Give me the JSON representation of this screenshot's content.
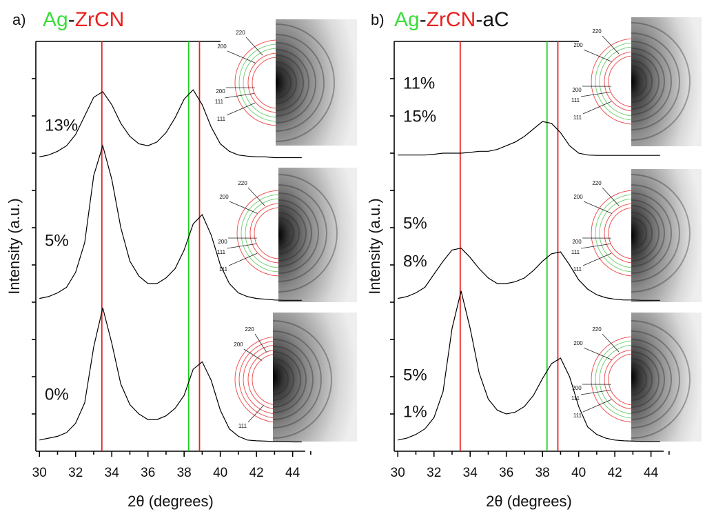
{
  "chart_data": [
    {
      "type": "line",
      "panel_label": "a)",
      "title": [
        "Ag",
        "-",
        "ZrCN"
      ],
      "title_colors": [
        "#3ddc3d",
        "#111111",
        "#e8201f"
      ],
      "x_label": "2θ (degrees)",
      "y_label": "Intensity (a.u.)",
      "xlim": [
        29.8,
        44.7
      ],
      "ylim": [
        0,
        11
      ],
      "xticks": [
        30,
        32,
        34,
        36,
        38,
        40,
        42,
        44
      ],
      "x": [
        30,
        30.5,
        31,
        31.5,
        32,
        32.5,
        33,
        33.5,
        34,
        34.5,
        35,
        35.5,
        36,
        36.5,
        37,
        37.5,
        38,
        38.5,
        39,
        39.5,
        40,
        40.5,
        41,
        41.5,
        42,
        42.5,
        43,
        43.5,
        44,
        44.5
      ],
      "ref_lines": [
        {
          "x": 33.45,
          "color": "#e8201f"
        },
        {
          "x": 38.25,
          "color": "#22cc22"
        },
        {
          "x": 38.85,
          "color": "#e8201f"
        }
      ],
      "series": [
        {
          "labels": [
            "0%"
          ],
          "label_colors": [
            "#3ddc3d"
          ],
          "color": "#000000",
          "values": [
            0.3,
            0.35,
            0.4,
            0.5,
            0.75,
            1.3,
            2.8,
            3.85,
            2.9,
            1.8,
            1.25,
            1.0,
            0.85,
            0.85,
            0.95,
            1.15,
            1.5,
            2.2,
            2.4,
            1.9,
            1.1,
            0.6,
            0.4,
            0.3,
            0.28,
            0.27,
            0.26,
            0.26,
            0.25,
            0.25
          ]
        },
        {
          "labels": [
            "5%"
          ],
          "label_colors": [
            "#3ddc3d"
          ],
          "color": "#000000",
          "values": [
            4.1,
            4.15,
            4.25,
            4.4,
            4.8,
            5.6,
            7.4,
            8.2,
            7.3,
            6.0,
            5.1,
            4.7,
            4.5,
            4.5,
            4.65,
            4.9,
            5.4,
            6.1,
            6.35,
            5.8,
            5.0,
            4.5,
            4.25,
            4.15,
            4.1,
            4.08,
            4.06,
            4.05,
            4.05,
            4.05
          ]
        },
        {
          "labels": [
            "13%"
          ],
          "label_colors": [
            "#3ddc3d"
          ],
          "color": "#000000",
          "values": [
            7.9,
            7.95,
            8.05,
            8.2,
            8.5,
            9.0,
            9.5,
            9.65,
            9.3,
            8.8,
            8.45,
            8.25,
            8.2,
            8.3,
            8.55,
            8.95,
            9.45,
            9.7,
            9.3,
            8.7,
            8.25,
            8.05,
            7.95,
            7.92,
            7.9,
            7.9,
            7.88,
            7.88,
            7.88,
            7.88
          ]
        }
      ],
      "insets": [
        {
          "labels": [
            "111",
            "200",
            "220"
          ],
          "label_colors": [
            "#111111",
            "#111111",
            "#111111"
          ]
        },
        {
          "labels": [
            "220",
            "200",
            "200",
            "111",
            "111"
          ],
          "label_colors": [
            "#e8201f",
            "#e8201f",
            "#22cc22",
            "#22cc22",
            "#e8201f"
          ]
        },
        {
          "labels": [
            "220",
            "200",
            "200",
            "111",
            "111"
          ],
          "label_colors": [
            "#e8201f",
            "#e8201f",
            "#22cc22",
            "#22cc22",
            "#e8201f"
          ]
        }
      ]
    },
    {
      "type": "line",
      "panel_label": "b)",
      "title": [
        "Ag",
        "-",
        "ZrCN",
        "-aC"
      ],
      "title_colors": [
        "#3ddc3d",
        "#111111",
        "#e8201f",
        "#111111"
      ],
      "x_label": "2θ (degrees)",
      "y_label": "Intensity (a.u.)",
      "xlim": [
        29.8,
        44.7
      ],
      "ylim": [
        0,
        11
      ],
      "xticks": [
        30,
        32,
        34,
        36,
        38,
        40,
        42,
        44
      ],
      "x": [
        30,
        30.5,
        31,
        31.5,
        32,
        32.5,
        33,
        33.5,
        34,
        34.5,
        35,
        35.5,
        36,
        36.5,
        37,
        37.5,
        38,
        38.5,
        39,
        39.5,
        40,
        40.5,
        41,
        41.5,
        42,
        42.5,
        43,
        43.5,
        44,
        44.5
      ],
      "ref_lines": [
        {
          "x": 33.45,
          "color": "#e8201f"
        },
        {
          "x": 38.25,
          "color": "#22cc22"
        },
        {
          "x": 38.85,
          "color": "#e8201f"
        }
      ],
      "series": [
        {
          "labels": [
            "5%",
            "1%"
          ],
          "label_colors": [
            "#3ddc3d",
            "#111111"
          ],
          "color": "#000000",
          "values": [
            0.3,
            0.35,
            0.45,
            0.6,
            0.9,
            1.6,
            3.3,
            4.3,
            3.3,
            2.1,
            1.4,
            1.1,
            1.0,
            1.05,
            1.2,
            1.5,
            1.95,
            2.35,
            2.5,
            2.0,
            1.2,
            0.65,
            0.45,
            0.35,
            0.3,
            0.28,
            0.27,
            0.26,
            0.26,
            0.26
          ]
        },
        {
          "labels": [
            "5%",
            "8%"
          ],
          "label_colors": [
            "#3ddc3d",
            "#111111"
          ],
          "color": "#000000",
          "values": [
            4.1,
            4.15,
            4.25,
            4.4,
            4.75,
            5.1,
            5.4,
            5.45,
            5.2,
            4.9,
            4.65,
            4.5,
            4.5,
            4.55,
            4.65,
            4.85,
            5.1,
            5.3,
            5.35,
            5.0,
            4.6,
            4.35,
            4.2,
            4.12,
            4.08,
            4.06,
            4.06,
            4.05,
            4.05,
            4.05
          ]
        },
        {
          "labels": [
            "11%",
            "15%"
          ],
          "label_colors": [
            "#3ddc3d",
            "#111111"
          ],
          "color": "#000000",
          "values": [
            7.95,
            7.95,
            7.95,
            7.95,
            7.97,
            8.0,
            8.0,
            8.0,
            8.02,
            8.05,
            8.05,
            8.1,
            8.2,
            8.3,
            8.45,
            8.65,
            8.85,
            8.8,
            8.55,
            8.2,
            8.0,
            7.95,
            7.94,
            7.94,
            7.94,
            7.94,
            7.94,
            7.94,
            7.94,
            7.94
          ]
        }
      ],
      "insets": [
        {
          "labels": [
            "220",
            "200",
            "200",
            "111",
            "111"
          ],
          "label_colors": [
            "#e8201f",
            "#e8201f",
            "#22cc22",
            "#22cc22",
            "#e8201f"
          ]
        },
        {
          "labels": [
            "220",
            "200",
            "200",
            "111",
            "111"
          ],
          "label_colors": [
            "#e8201f",
            "#e8201f",
            "#22cc22",
            "#22cc22",
            "#e8201f"
          ]
        },
        {
          "labels": [
            "220",
            "200",
            "200",
            "111",
            "111"
          ],
          "label_colors": [
            "#e8201f",
            "#e8201f",
            "#22cc22",
            "#22cc22",
            "#e8201f"
          ]
        }
      ]
    }
  ]
}
